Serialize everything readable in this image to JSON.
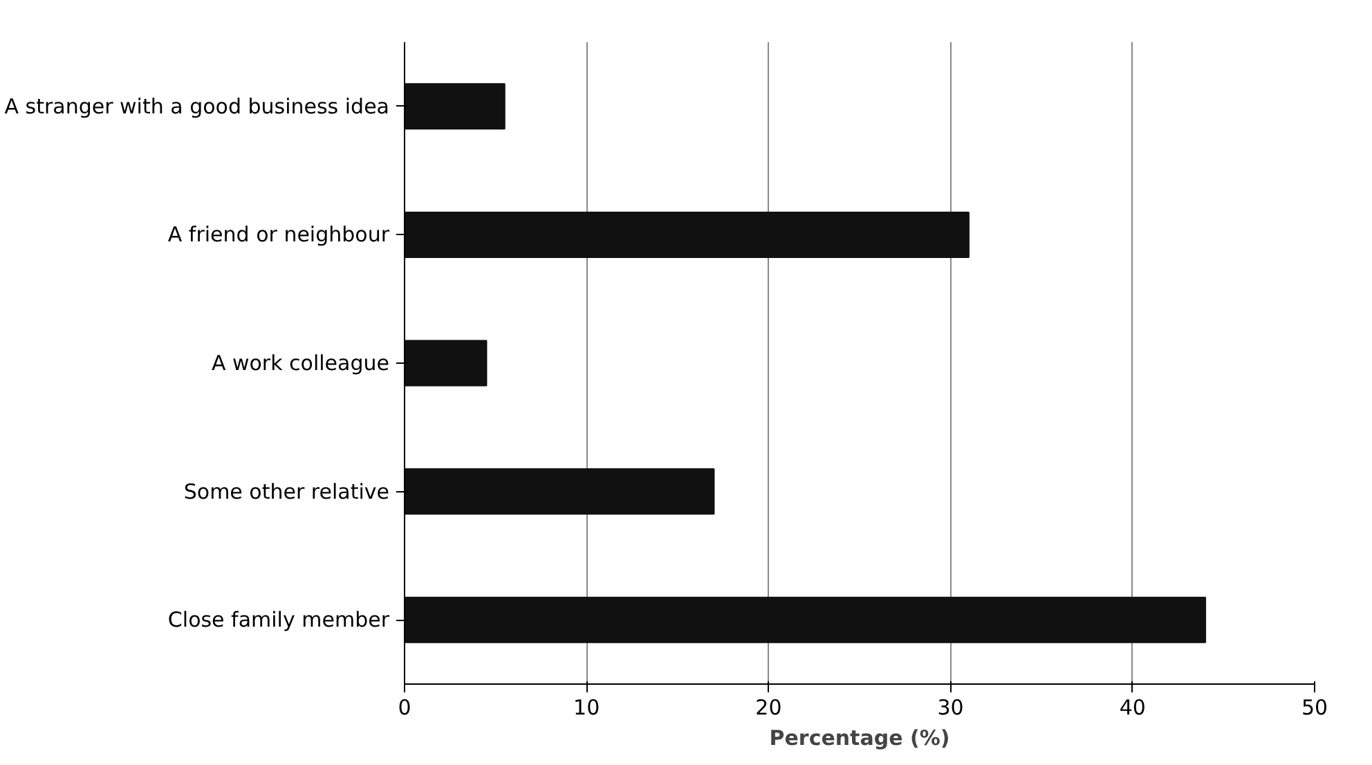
{
  "chart_data": {
    "type": "bar",
    "orientation": "horizontal",
    "categories": [
      "A stranger with a good business idea",
      "A friend or neighbour",
      "A work colleague",
      "Some other relative",
      "Close family member"
    ],
    "values": [
      5.5,
      31,
      4.5,
      17,
      44
    ],
    "color": "#111111",
    "xlabel": "Percentage (%)",
    "xlim": [
      0,
      50
    ],
    "xticks": [
      0,
      10,
      20,
      30,
      40,
      50
    ],
    "grid": "x"
  }
}
